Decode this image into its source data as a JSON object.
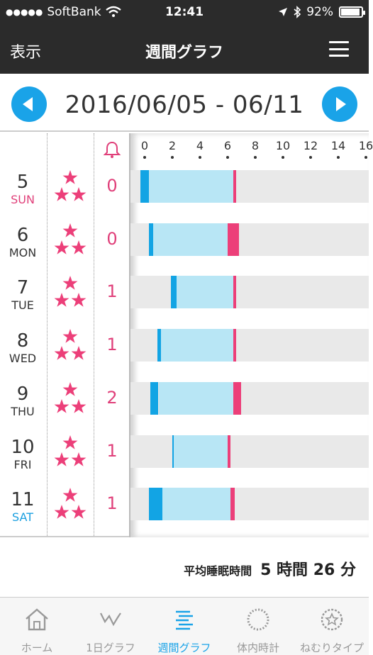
{
  "status_bar": {
    "signal_dots": "●●●●●",
    "carrier": "SoftBank",
    "time": "12:41",
    "battery": "92%"
  },
  "nav": {
    "left_label": "表示",
    "title": "週間グラフ"
  },
  "date_header": {
    "range": "2016/06/05 - 06/11"
  },
  "axis": {
    "ticks": [
      "0",
      "2",
      "4",
      "6",
      "8",
      "10",
      "12",
      "14",
      "16"
    ]
  },
  "days": [
    {
      "num": "5",
      "name": "SUN",
      "alarms": "0",
      "stars": 3
    },
    {
      "num": "6",
      "name": "MON",
      "alarms": "0",
      "stars": 3
    },
    {
      "num": "7",
      "name": "TUE",
      "alarms": "1",
      "stars": 3
    },
    {
      "num": "8",
      "name": "WED",
      "alarms": "1",
      "stars": 3
    },
    {
      "num": "9",
      "name": "THU",
      "alarms": "2",
      "stars": 3
    },
    {
      "num": "10",
      "name": "FRI",
      "alarms": "1",
      "stars": 3
    },
    {
      "num": "11",
      "name": "SAT",
      "alarms": "1",
      "stars": 3
    }
  ],
  "sleep_bars": [
    {
      "day": "5",
      "segments": [
        {
          "kind": "blue",
          "from": -0.3,
          "to": 0.3
        },
        {
          "kind": "light",
          "from": 0.3,
          "to": 6.4
        },
        {
          "kind": "pink",
          "from": 6.4,
          "to": 6.6
        }
      ]
    },
    {
      "day": "6",
      "segments": [
        {
          "kind": "blue",
          "from": 0.3,
          "to": 0.6
        },
        {
          "kind": "light",
          "from": 0.6,
          "to": 6.0
        },
        {
          "kind": "pink",
          "from": 6.0,
          "to": 6.8
        }
      ]
    },
    {
      "day": "7",
      "segments": [
        {
          "kind": "blue",
          "from": 1.9,
          "to": 2.3
        },
        {
          "kind": "light",
          "from": 2.3,
          "to": 6.4
        },
        {
          "kind": "pink",
          "from": 6.4,
          "to": 6.6
        }
      ]
    },
    {
      "day": "8",
      "segments": [
        {
          "kind": "blue",
          "from": 0.9,
          "to": 1.2
        },
        {
          "kind": "light",
          "from": 1.2,
          "to": 6.4
        },
        {
          "kind": "pink",
          "from": 6.4,
          "to": 6.6
        }
      ]
    },
    {
      "day": "9",
      "segments": [
        {
          "kind": "blue",
          "from": 0.4,
          "to": 1.0
        },
        {
          "kind": "light",
          "from": 1.0,
          "to": 6.4
        },
        {
          "kind": "pink",
          "from": 6.4,
          "to": 7.0
        }
      ]
    },
    {
      "day": "10",
      "segments": [
        {
          "kind": "blue",
          "from": 2.0,
          "to": 2.1
        },
        {
          "kind": "light",
          "from": 2.1,
          "to": 6.0
        },
        {
          "kind": "pink",
          "from": 6.0,
          "to": 6.2
        }
      ]
    },
    {
      "day": "11",
      "segments": [
        {
          "kind": "blue",
          "from": 0.3,
          "to": 1.3
        },
        {
          "kind": "light",
          "from": 1.3,
          "to": 6.2
        },
        {
          "kind": "pink",
          "from": 6.2,
          "to": 6.5
        }
      ]
    }
  ],
  "average": {
    "label": "平均睡眠時間",
    "value": "5 時間 26 分"
  },
  "tabs": [
    {
      "label": "ホーム",
      "icon": "home-icon",
      "active": false
    },
    {
      "label": "1日グラフ",
      "icon": "daily-graph-icon",
      "active": false
    },
    {
      "label": "週間グラフ",
      "icon": "weekly-graph-icon",
      "active": true
    },
    {
      "label": "体内時計",
      "icon": "body-clock-icon",
      "active": false
    },
    {
      "label": "ねむりタイプ",
      "icon": "sleep-type-icon",
      "active": false
    }
  ],
  "colors": {
    "accent_blue": "#1aa3e8",
    "accent_pink": "#ec3f79",
    "light_blue": "#b8e6f5",
    "bar_bg": "#e9e9e9",
    "nav_bg": "#2b2b2b"
  }
}
